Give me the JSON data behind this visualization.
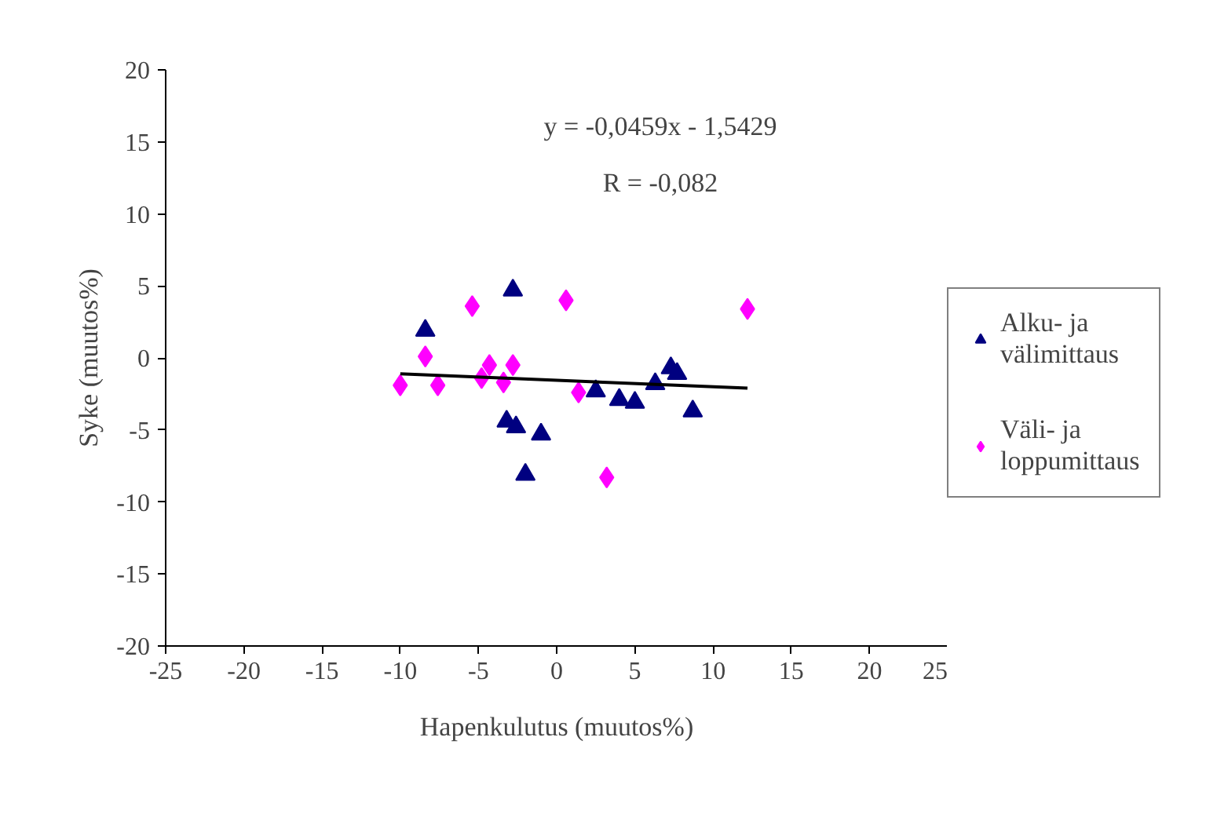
{
  "chart_data": {
    "type": "scatter",
    "xlabel": "Hapenkulutus (muutos%)",
    "ylabel": "Syke (muutos%)",
    "xlim": [
      -25,
      25
    ],
    "xticks": [
      -25,
      -20,
      -15,
      -10,
      -5,
      0,
      5,
      10,
      15,
      20,
      25
    ],
    "ylim": [
      -20,
      20
    ],
    "yticks": [
      -20,
      -15,
      -10,
      -5,
      0,
      5,
      10,
      15,
      20
    ],
    "grid": false,
    "legend": "right",
    "annotations": [
      "y = -0,0459x - 1,5429",
      "R = -0,082"
    ],
    "series": [
      {
        "name": "Alku- ja välimittaus",
        "color": "#000080",
        "marker": "triangle",
        "x": [
          -8.4,
          -2.8,
          -3.2,
          -2.6,
          -1.0,
          -2.0,
          2.5,
          4.0,
          5.0,
          6.3,
          7.3,
          7.7,
          8.7
        ],
        "values": [
          1.9,
          4.7,
          -4.4,
          -4.8,
          -5.3,
          -8.1,
          -2.3,
          -2.9,
          -3.1,
          -1.8,
          -0.7,
          -1.1,
          -3.7
        ]
      },
      {
        "name": "Väli- ja loppumittaus",
        "color": "#ff00ff",
        "marker": "diamond",
        "x": [
          -10.0,
          -8.4,
          -7.6,
          -5.4,
          -4.8,
          -4.3,
          -3.4,
          -2.8,
          0.6,
          1.4,
          3.2,
          12.2
        ],
        "values": [
          -1.9,
          0.1,
          -1.9,
          3.6,
          -1.4,
          -0.5,
          -1.7,
          -0.5,
          4.0,
          -2.4,
          -8.3,
          3.4
        ]
      },
      {
        "type": "line",
        "color": "#000000",
        "marker": "none",
        "x": [
          -10.0,
          12.2
        ],
        "values": [
          -1.1,
          -2.1
        ]
      }
    ]
  }
}
